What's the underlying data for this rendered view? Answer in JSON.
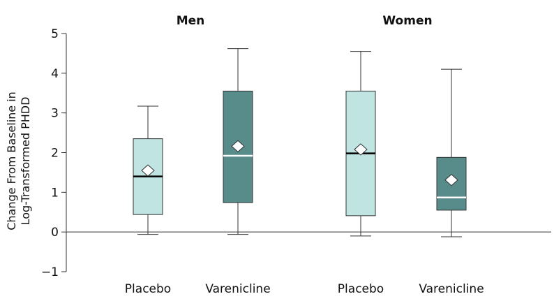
{
  "chart_data": {
    "type": "box",
    "ylabel": [
      "Change From Baseline in",
      "Log-Transformed PHDD"
    ],
    "ylim": [
      -1,
      5
    ],
    "yticks": [
      -1,
      0,
      1,
      2,
      3,
      4,
      5
    ],
    "ytick_labels": [
      "−1",
      "0",
      "1",
      "2",
      "3",
      "4",
      "5"
    ],
    "grid": false,
    "groups": [
      {
        "title": "Men",
        "boxes": [
          {
            "label": "Placebo",
            "min": -0.06,
            "q1": 0.44,
            "median": 1.4,
            "q3": 2.35,
            "max": 3.17,
            "mean": 1.55,
            "fill": "#bfe4e2",
            "median_color": "#000000"
          },
          {
            "label": "Varenicline",
            "min": -0.06,
            "q1": 0.74,
            "median": 1.92,
            "q3": 3.55,
            "max": 4.62,
            "mean": 2.16,
            "fill": "#578c8a",
            "median_color": "#ffffff"
          }
        ]
      },
      {
        "title": "Women",
        "boxes": [
          {
            "label": "Placebo",
            "min": -0.1,
            "q1": 0.41,
            "median": 1.98,
            "q3": 3.55,
            "max": 4.55,
            "mean": 2.08,
            "fill": "#bfe4e2",
            "median_color": "#000000"
          },
          {
            "label": "Varenicline",
            "min": -0.12,
            "q1": 0.55,
            "median": 0.87,
            "q3": 1.88,
            "max": 4.1,
            "mean": 1.31,
            "fill": "#578c8a",
            "median_color": "#ffffff"
          }
        ]
      }
    ]
  }
}
